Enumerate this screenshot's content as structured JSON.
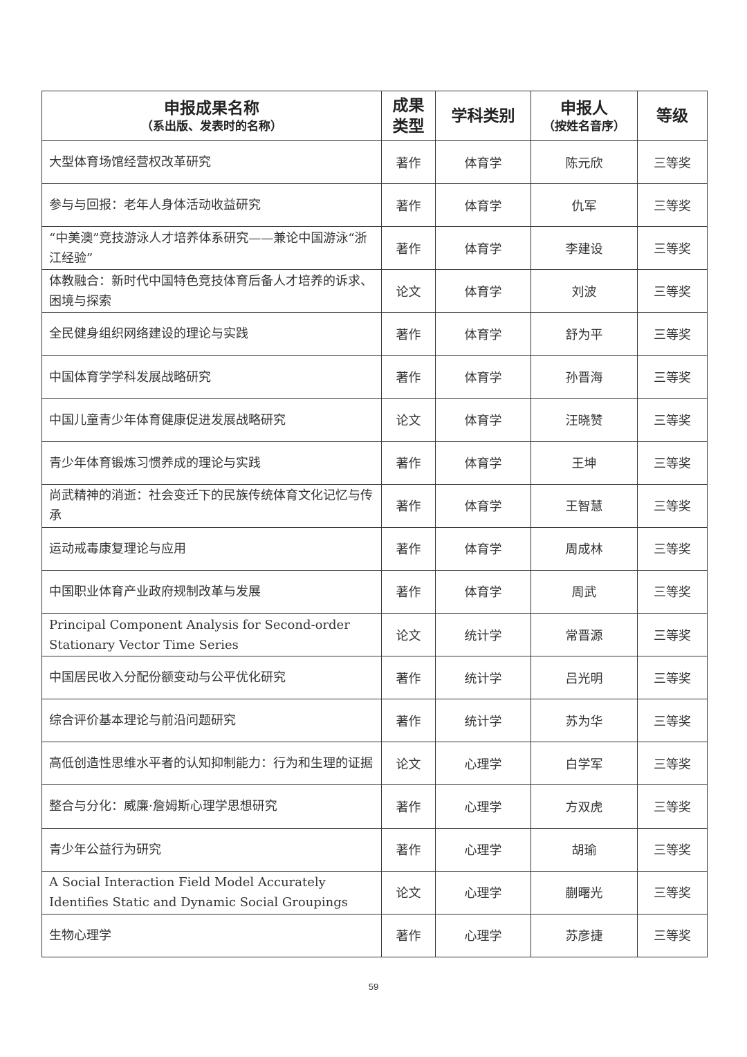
{
  "headers": {
    "title": "申报成果名称",
    "title_sub": "（系出版、发表时的名称）",
    "type": "成果类型",
    "discipline": "学科类别",
    "applicant": "申报人",
    "applicant_sub": "（按姓名音序）",
    "level": "等级"
  },
  "rows": [
    {
      "title": "大型体育场馆经营权改革研究",
      "type": "著作",
      "discipline": "体育学",
      "applicant": "陈元欣",
      "level": "三等奖"
    },
    {
      "title": "参与与回报：老年人身体活动收益研究",
      "type": "著作",
      "discipline": "体育学",
      "applicant": "仇军",
      "level": "三等奖"
    },
    {
      "title": "“中美澳”竞技游泳人才培养体系研究——兼论中国游泳“浙江经验”",
      "type": "著作",
      "discipline": "体育学",
      "applicant": "李建设",
      "level": "三等奖"
    },
    {
      "title": "体教融合：新时代中国特色竞技体育后备人才培养的诉求、困境与探索",
      "type": "论文",
      "discipline": "体育学",
      "applicant": "刘波",
      "level": "三等奖"
    },
    {
      "title": "全民健身组织网络建设的理论与实践",
      "type": "著作",
      "discipline": "体育学",
      "applicant": "舒为平",
      "level": "三等奖"
    },
    {
      "title": "中国体育学学科发展战略研究",
      "type": "著作",
      "discipline": "体育学",
      "applicant": "孙晋海",
      "level": "三等奖"
    },
    {
      "title": "中国儿童青少年体育健康促进发展战略研究",
      "type": "论文",
      "discipline": "体育学",
      "applicant": "汪晓赞",
      "level": "三等奖"
    },
    {
      "title": "青少年体育锻炼习惯养成的理论与实践",
      "type": "著作",
      "discipline": "体育学",
      "applicant": "王坤",
      "level": "三等奖"
    },
    {
      "title": "尚武精神的消逝：社会变迁下的民族传统体育文化记忆与传承",
      "type": "著作",
      "discipline": "体育学",
      "applicant": "王智慧",
      "level": "三等奖"
    },
    {
      "title": "运动戒毒康复理论与应用",
      "type": "著作",
      "discipline": "体育学",
      "applicant": "周成林",
      "level": "三等奖"
    },
    {
      "title": "中国职业体育产业政府规制改革与发展",
      "type": "著作",
      "discipline": "体育学",
      "applicant": "周武",
      "level": "三等奖"
    },
    {
      "title": "Principal Component Analysis for Second-order Stationary Vector Time Series",
      "type": "论文",
      "discipline": "统计学",
      "applicant": "常晋源",
      "level": "三等奖"
    },
    {
      "title": "中国居民收入分配份额变动与公平优化研究",
      "type": "著作",
      "discipline": "统计学",
      "applicant": "吕光明",
      "level": "三等奖"
    },
    {
      "title": "综合评价基本理论与前沿问题研究",
      "type": "著作",
      "discipline": "统计学",
      "applicant": "苏为华",
      "level": "三等奖"
    },
    {
      "title": "高低创造性思维水平者的认知抑制能力：行为和生理的证据",
      "type": "论文",
      "discipline": "心理学",
      "applicant": "白学军",
      "level": "三等奖"
    },
    {
      "title": "整合与分化：威廉·詹姆斯心理学思想研究",
      "type": "著作",
      "discipline": "心理学",
      "applicant": "方双虎",
      "level": "三等奖"
    },
    {
      "title": "青少年公益行为研究",
      "type": "著作",
      "discipline": "心理学",
      "applicant": "胡瑜",
      "level": "三等奖"
    },
    {
      "title": "A Social Interaction Field Model Accurately Identifies Static and Dynamic Social Groupings",
      "type": "论文",
      "discipline": "心理学",
      "applicant": "蒯曙光",
      "level": "三等奖"
    },
    {
      "title": "生物心理学",
      "type": "著作",
      "discipline": "心理学",
      "applicant": "苏彦捷",
      "level": "三等奖"
    }
  ],
  "page_number": "59"
}
